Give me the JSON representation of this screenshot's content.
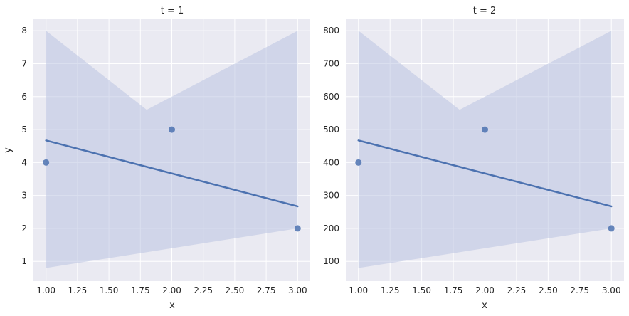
{
  "chart_data": [
    {
      "type": "scatter",
      "title": "t = 1",
      "xlabel": "x",
      "ylabel": "y",
      "xlim": [
        0.9,
        3.1
      ],
      "ylim": [
        0.4,
        8.35
      ],
      "xticks": [
        "1.00",
        "1.25",
        "1.50",
        "1.75",
        "2.00",
        "2.25",
        "2.50",
        "2.75",
        "3.00"
      ],
      "yticks": [
        "1",
        "2",
        "3",
        "4",
        "5",
        "6",
        "7",
        "8"
      ],
      "grid": true,
      "points": [
        {
          "x": 1,
          "y": 4
        },
        {
          "x": 2,
          "y": 5
        },
        {
          "x": 3,
          "y": 2
        }
      ],
      "regression": {
        "x": [
          1,
          3
        ],
        "y": [
          4.67,
          2.67
        ]
      },
      "ci_band": {
        "x": [
          1,
          1.8,
          3
        ],
        "upper": [
          8.0,
          5.6,
          8.0
        ],
        "lower": [
          0.8,
          1.27,
          2.0
        ]
      },
      "colors": {
        "points": "#4c72b0",
        "line": "#4c72b0",
        "band": "#b5c0e0",
        "background": "#eaeaf2"
      }
    },
    {
      "type": "scatter",
      "title": "t = 2",
      "xlabel": "x",
      "ylabel": "",
      "xlim": [
        0.9,
        3.1
      ],
      "ylim": [
        40,
        835
      ],
      "xticks": [
        "1.00",
        "1.25",
        "1.50",
        "1.75",
        "2.00",
        "2.25",
        "2.50",
        "2.75",
        "3.00"
      ],
      "yticks": [
        "100",
        "200",
        "300",
        "400",
        "500",
        "600",
        "700",
        "800"
      ],
      "grid": true,
      "points": [
        {
          "x": 1,
          "y": 400
        },
        {
          "x": 2,
          "y": 500
        },
        {
          "x": 3,
          "y": 200
        }
      ],
      "regression": {
        "x": [
          1,
          3
        ],
        "y": [
          467,
          267
        ]
      },
      "ci_band": {
        "x": [
          1,
          1.8,
          3
        ],
        "upper": [
          800,
          560,
          800
        ],
        "lower": [
          80,
          127,
          200
        ]
      },
      "colors": {
        "points": "#4c72b0",
        "line": "#4c72b0",
        "band": "#b5c0e0",
        "background": "#eaeaf2"
      }
    }
  ]
}
